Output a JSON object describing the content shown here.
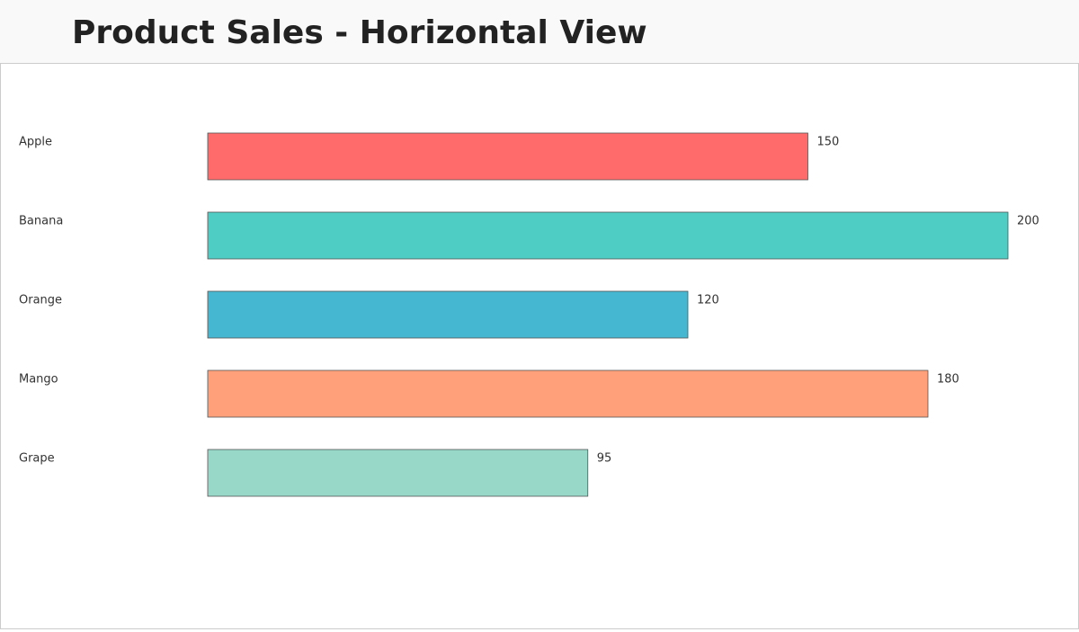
{
  "chart_data": {
    "type": "bar",
    "orientation": "horizontal",
    "title": "Product Sales - Horizontal View",
    "categories": [
      "Apple",
      "Banana",
      "Orange",
      "Mango",
      "Grape"
    ],
    "values": [
      150,
      200,
      120,
      180,
      95
    ],
    "colors": [
      "#ff6b6b",
      "#4ecdc4",
      "#45b7d1",
      "#ffa07a",
      "#98d8c8"
    ]
  }
}
